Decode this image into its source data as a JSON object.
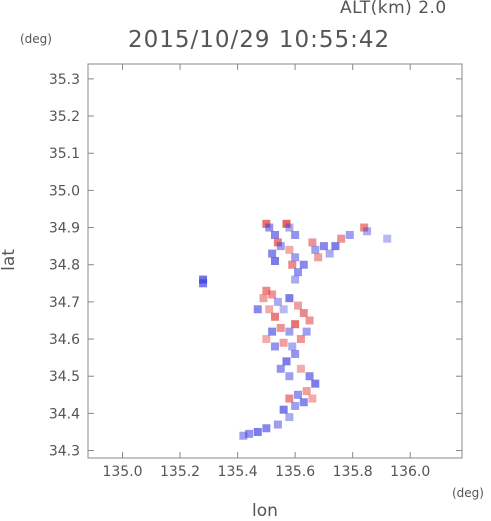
{
  "header": {
    "alt_label": "ALT(km) 2.0",
    "title": "2015/10/29 10:55:42"
  },
  "chart_data": {
    "type": "heatmap",
    "title": "2015/10/29 10:55:42",
    "xlabel": "lon",
    "ylabel": "lat",
    "x_unit": "(deg)",
    "y_unit": "(deg)",
    "xlim": [
      134.88,
      136.18
    ],
    "ylim": [
      34.28,
      35.34
    ],
    "x_ticks": [
      135.0,
      135.2,
      135.4,
      135.6,
      135.8,
      136.0
    ],
    "y_ticks": [
      34.3,
      34.4,
      34.5,
      34.6,
      34.7,
      34.8,
      34.9,
      35.0,
      35.1,
      35.2,
      35.3
    ],
    "x_tick_labels": [
      "135.0",
      "135.2",
      "135.4",
      "135.6",
      "135.8",
      "136.0"
    ],
    "y_tick_labels": [
      "34.3",
      "34.4",
      "34.5",
      "34.6",
      "34.7",
      "34.8",
      "34.9",
      "35.0",
      "35.1",
      "35.2",
      "35.3"
    ],
    "grid": false,
    "colors": {
      "positive": "#e03c3c",
      "negative": "#3c3ce0",
      "frame": "#888888"
    },
    "cells": [
      {
        "lon": 135.28,
        "lat": 34.76,
        "v": -0.8
      },
      {
        "lon": 135.28,
        "lat": 34.75,
        "v": -0.7
      },
      {
        "lon": 135.5,
        "lat": 34.91,
        "v": 0.8
      },
      {
        "lon": 135.51,
        "lat": 34.9,
        "v": -0.5
      },
      {
        "lon": 135.53,
        "lat": 34.88,
        "v": -0.6
      },
      {
        "lon": 135.54,
        "lat": 34.86,
        "v": 0.7
      },
      {
        "lon": 135.55,
        "lat": 34.85,
        "v": -0.4
      },
      {
        "lon": 135.57,
        "lat": 34.91,
        "v": 0.9
      },
      {
        "lon": 135.58,
        "lat": 34.9,
        "v": -0.3
      },
      {
        "lon": 135.6,
        "lat": 34.88,
        "v": -0.5
      },
      {
        "lon": 135.52,
        "lat": 34.83,
        "v": -0.6
      },
      {
        "lon": 135.53,
        "lat": 34.81,
        "v": -0.7
      },
      {
        "lon": 135.58,
        "lat": 34.84,
        "v": 0.3
      },
      {
        "lon": 135.6,
        "lat": 34.82,
        "v": -0.4
      },
      {
        "lon": 135.59,
        "lat": 34.8,
        "v": 0.6
      },
      {
        "lon": 135.61,
        "lat": 34.78,
        "v": -0.5
      },
      {
        "lon": 135.6,
        "lat": 34.76,
        "v": -0.3
      },
      {
        "lon": 135.63,
        "lat": 34.8,
        "v": -0.6
      },
      {
        "lon": 135.66,
        "lat": 34.86,
        "v": 0.5
      },
      {
        "lon": 135.67,
        "lat": 34.84,
        "v": -0.4
      },
      {
        "lon": 135.68,
        "lat": 34.82,
        "v": 0.4
      },
      {
        "lon": 135.7,
        "lat": 34.85,
        "v": -0.6
      },
      {
        "lon": 135.72,
        "lat": 34.83,
        "v": -0.3
      },
      {
        "lon": 135.74,
        "lat": 34.85,
        "v": -0.7
      },
      {
        "lon": 135.76,
        "lat": 34.87,
        "v": 0.5
      },
      {
        "lon": 135.79,
        "lat": 34.88,
        "v": -0.4
      },
      {
        "lon": 135.84,
        "lat": 34.9,
        "v": 0.6
      },
      {
        "lon": 135.85,
        "lat": 34.89,
        "v": -0.3
      },
      {
        "lon": 135.92,
        "lat": 34.87,
        "v": -0.2
      },
      {
        "lon": 135.47,
        "lat": 34.68,
        "v": -0.6
      },
      {
        "lon": 135.49,
        "lat": 34.71,
        "v": 0.4
      },
      {
        "lon": 135.5,
        "lat": 34.73,
        "v": 0.6
      },
      {
        "lon": 135.52,
        "lat": 34.72,
        "v": 0.5
      },
      {
        "lon": 135.54,
        "lat": 34.7,
        "v": -0.3
      },
      {
        "lon": 135.51,
        "lat": 34.68,
        "v": 0.3
      },
      {
        "lon": 135.53,
        "lat": 34.66,
        "v": 0.7
      },
      {
        "lon": 135.56,
        "lat": 34.68,
        "v": -0.2
      },
      {
        "lon": 135.58,
        "lat": 34.71,
        "v": -0.7
      },
      {
        "lon": 135.61,
        "lat": 34.69,
        "v": 0.4
      },
      {
        "lon": 135.63,
        "lat": 34.67,
        "v": 0.6
      },
      {
        "lon": 135.65,
        "lat": 34.65,
        "v": 0.5
      },
      {
        "lon": 135.6,
        "lat": 34.64,
        "v": 0.8
      },
      {
        "lon": 135.58,
        "lat": 34.62,
        "v": -0.4
      },
      {
        "lon": 135.55,
        "lat": 34.63,
        "v": 0.5
      },
      {
        "lon": 135.52,
        "lat": 34.62,
        "v": -0.6
      },
      {
        "lon": 135.5,
        "lat": 34.6,
        "v": 0.3
      },
      {
        "lon": 135.53,
        "lat": 34.58,
        "v": -0.5
      },
      {
        "lon": 135.56,
        "lat": 34.59,
        "v": 0.4
      },
      {
        "lon": 135.59,
        "lat": 34.58,
        "v": -0.3
      },
      {
        "lon": 135.62,
        "lat": 34.6,
        "v": 0.5
      },
      {
        "lon": 135.64,
        "lat": 34.62,
        "v": -0.4
      },
      {
        "lon": 135.6,
        "lat": 34.56,
        "v": -0.5
      },
      {
        "lon": 135.57,
        "lat": 34.54,
        "v": -0.7
      },
      {
        "lon": 135.55,
        "lat": 34.52,
        "v": -0.5
      },
      {
        "lon": 135.58,
        "lat": 34.5,
        "v": -0.4
      },
      {
        "lon": 135.62,
        "lat": 34.52,
        "v": 0.3
      },
      {
        "lon": 135.65,
        "lat": 34.5,
        "v": -0.6
      },
      {
        "lon": 135.67,
        "lat": 34.48,
        "v": -0.7
      },
      {
        "lon": 135.64,
        "lat": 34.46,
        "v": 0.4
      },
      {
        "lon": 135.61,
        "lat": 34.45,
        "v": -0.5
      },
      {
        "lon": 135.58,
        "lat": 34.44,
        "v": 0.6
      },
      {
        "lon": 135.6,
        "lat": 34.42,
        "v": -0.4
      },
      {
        "lon": 135.63,
        "lat": 34.43,
        "v": -0.6
      },
      {
        "lon": 135.66,
        "lat": 34.44,
        "v": 0.3
      },
      {
        "lon": 135.56,
        "lat": 34.41,
        "v": -0.7
      },
      {
        "lon": 135.58,
        "lat": 34.39,
        "v": -0.3
      },
      {
        "lon": 135.54,
        "lat": 34.37,
        "v": -0.4
      },
      {
        "lon": 135.5,
        "lat": 34.36,
        "v": -0.6
      },
      {
        "lon": 135.47,
        "lat": 34.35,
        "v": -0.7
      },
      {
        "lon": 135.44,
        "lat": 34.345,
        "v": -0.5
      },
      {
        "lon": 135.42,
        "lat": 34.34,
        "v": -0.4
      }
    ]
  }
}
